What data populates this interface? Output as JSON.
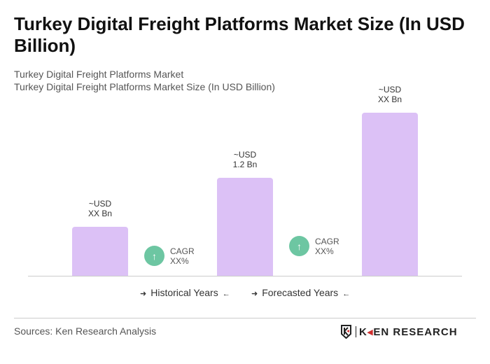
{
  "title": "Turkey Digital Freight Platforms Market Size (In USD Billion)",
  "subtitle1": "Turkey Digital Freight Platforms Market",
  "subtitle2": "Turkey Digital Freight Platforms Market Size (In USD Billion)",
  "chart_data": {
    "type": "bar",
    "values": [
      0.6,
      1.2,
      2.0
    ],
    "data_labels": [
      [
        "~USD",
        "XX Bn"
      ],
      [
        "~USD",
        "1.2 Bn"
      ],
      [
        "~USD",
        "XX Bn"
      ]
    ],
    "bar_color": "#dcc1f6",
    "cagr": [
      {
        "label": "CAGR",
        "value": "XX%"
      },
      {
        "label": "CAGR",
        "value": "XX%"
      }
    ],
    "cagr_color": "#6dc6a2",
    "legend": [
      "Historical Years",
      "Forecasted Years"
    ],
    "grid": false
  },
  "footer": {
    "sources": "Sources: Ken Research Analysis",
    "logo": "KEN RESEARCH"
  }
}
